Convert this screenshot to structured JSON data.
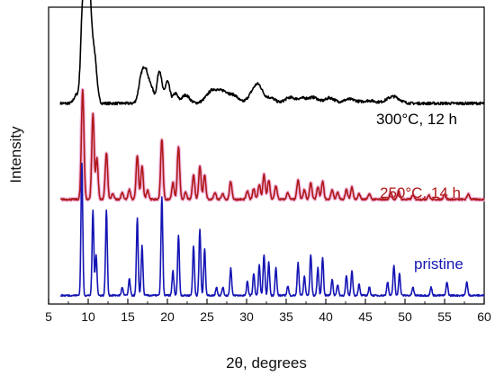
{
  "chart_data": {
    "type": "line",
    "title": "",
    "xlabel": "2θ, degrees",
    "ylabel": "Intensity",
    "xlim": [
      5,
      60
    ],
    "x_ticks": [
      5,
      10,
      15,
      20,
      25,
      30,
      35,
      40,
      45,
      50,
      55,
      60
    ],
    "x_ticks_labels": [
      "5",
      "10",
      "15",
      "20",
      "25",
      "30",
      "35",
      "40",
      "45",
      "50",
      "55",
      "60"
    ],
    "y_ticks_shown": false,
    "grid": false,
    "legend": "none",
    "series": [
      {
        "name": "300°C, 12 h",
        "color": "#000000",
        "style": "broad",
        "offset": 6.8,
        "baseline": 0.35,
        "peaks": [
          [
            9.3,
            3.2,
            0.25
          ],
          [
            10.0,
            5.0,
            0.35
          ],
          [
            10.8,
            1.6,
            0.3
          ],
          [
            8.5,
            0.3,
            0.3
          ],
          [
            16.7,
            0.85,
            0.35
          ],
          [
            17.3,
            1.05,
            0.35
          ],
          [
            18.0,
            0.5,
            0.3
          ],
          [
            19.0,
            1.2,
            0.3
          ],
          [
            20.0,
            0.8,
            0.3
          ],
          [
            21.0,
            0.35,
            0.3
          ],
          [
            22.3,
            0.3,
            0.5
          ],
          [
            25.8,
            0.5,
            0.8
          ],
          [
            27.3,
            0.35,
            0.6
          ],
          [
            28.5,
            0.25,
            0.5
          ],
          [
            31.0,
            0.45,
            0.7
          ],
          [
            31.6,
            0.35,
            0.5
          ],
          [
            33.0,
            0.2,
            0.6
          ],
          [
            35.4,
            0.2,
            0.6
          ],
          [
            37.0,
            0.18,
            0.7
          ],
          [
            38.5,
            0.2,
            0.6
          ],
          [
            40.5,
            0.2,
            0.6
          ],
          [
            43.0,
            0.15,
            0.8
          ],
          [
            45.5,
            0.1,
            0.8
          ],
          [
            48.5,
            0.25,
            0.8
          ]
        ]
      },
      {
        "name": "250°C, 14 h",
        "color": "#b01818",
        "style": "sharp",
        "offset": 3.4,
        "baseline": 0.25,
        "peaks": [
          [
            9.3,
            4.0,
            0.16
          ],
          [
            10.6,
            3.1,
            0.15
          ],
          [
            11.1,
            1.5,
            0.15
          ],
          [
            12.3,
            1.7,
            0.15
          ],
          [
            13.1,
            0.2,
            0.15
          ],
          [
            14.3,
            0.25,
            0.15
          ],
          [
            15.2,
            0.35,
            0.15
          ],
          [
            16.2,
            1.6,
            0.15
          ],
          [
            16.8,
            1.2,
            0.15
          ],
          [
            17.5,
            0.35,
            0.15
          ],
          [
            19.3,
            2.2,
            0.15
          ],
          [
            20.7,
            0.6,
            0.15
          ],
          [
            21.4,
            1.9,
            0.15
          ],
          [
            22.3,
            0.25,
            0.15
          ],
          [
            23.3,
            0.9,
            0.15
          ],
          [
            24.1,
            1.2,
            0.15
          ],
          [
            24.7,
            0.9,
            0.15
          ],
          [
            26.0,
            0.25,
            0.15
          ],
          [
            27.0,
            0.2,
            0.15
          ],
          [
            28.0,
            0.65,
            0.15
          ],
          [
            30.1,
            0.3,
            0.15
          ],
          [
            30.9,
            0.4,
            0.15
          ],
          [
            31.6,
            0.55,
            0.15
          ],
          [
            32.2,
            0.9,
            0.15
          ],
          [
            32.8,
            0.7,
            0.15
          ],
          [
            33.7,
            0.5,
            0.15
          ],
          [
            35.2,
            0.25,
            0.15
          ],
          [
            36.5,
            0.7,
            0.15
          ],
          [
            37.3,
            0.35,
            0.15
          ],
          [
            38.1,
            0.6,
            0.15
          ],
          [
            39.0,
            0.45,
            0.15
          ],
          [
            39.6,
            0.65,
            0.15
          ],
          [
            40.8,
            0.35,
            0.15
          ],
          [
            41.5,
            0.25,
            0.15
          ],
          [
            42.6,
            0.35,
            0.15
          ],
          [
            43.3,
            0.45,
            0.15
          ],
          [
            44.2,
            0.2,
            0.15
          ],
          [
            45.5,
            0.2,
            0.15
          ],
          [
            48.2,
            0.25,
            0.15
          ],
          [
            49.2,
            0.3,
            0.15
          ],
          [
            51.0,
            0.15,
            0.15
          ],
          [
            53.0,
            0.15,
            0.15
          ],
          [
            55.0,
            0.2,
            0.15
          ],
          [
            58.0,
            0.2,
            0.15
          ]
        ]
      },
      {
        "name": "pristine",
        "color": "#1515b5",
        "style": "sharp",
        "offset": 0.0,
        "baseline": 0.15,
        "peaks": [
          [
            9.2,
            4.8,
            0.11
          ],
          [
            10.6,
            3.1,
            0.11
          ],
          [
            11.0,
            1.5,
            0.11
          ],
          [
            12.3,
            3.1,
            0.11
          ],
          [
            14.3,
            0.3,
            0.11
          ],
          [
            15.2,
            0.6,
            0.11
          ],
          [
            16.2,
            2.8,
            0.11
          ],
          [
            16.8,
            1.8,
            0.11
          ],
          [
            19.3,
            3.6,
            0.11
          ],
          [
            20.7,
            0.9,
            0.11
          ],
          [
            21.4,
            2.2,
            0.11
          ],
          [
            23.3,
            1.8,
            0.11
          ],
          [
            24.1,
            2.4,
            0.11
          ],
          [
            24.7,
            1.7,
            0.11
          ],
          [
            26.2,
            0.3,
            0.11
          ],
          [
            27.0,
            0.3,
            0.11
          ],
          [
            28.0,
            1.0,
            0.11
          ],
          [
            30.1,
            0.5,
            0.11
          ],
          [
            30.9,
            0.8,
            0.11
          ],
          [
            31.6,
            1.1,
            0.11
          ],
          [
            32.2,
            1.5,
            0.11
          ],
          [
            32.8,
            1.2,
            0.11
          ],
          [
            33.7,
            1.0,
            0.11
          ],
          [
            35.2,
            0.35,
            0.11
          ],
          [
            36.5,
            1.2,
            0.11
          ],
          [
            37.3,
            0.7,
            0.11
          ],
          [
            38.1,
            1.5,
            0.11
          ],
          [
            39.0,
            1.0,
            0.11
          ],
          [
            39.6,
            1.4,
            0.11
          ],
          [
            40.8,
            0.6,
            0.11
          ],
          [
            41.5,
            0.4,
            0.11
          ],
          [
            42.6,
            0.7,
            0.11
          ],
          [
            43.3,
            0.9,
            0.11
          ],
          [
            44.2,
            0.4,
            0.11
          ],
          [
            45.5,
            0.3,
            0.11
          ],
          [
            47.8,
            0.5,
            0.11
          ],
          [
            48.6,
            1.1,
            0.11
          ],
          [
            49.3,
            0.8,
            0.11
          ],
          [
            51.0,
            0.3,
            0.11
          ],
          [
            53.3,
            0.3,
            0.11
          ],
          [
            55.3,
            0.5,
            0.11
          ],
          [
            57.8,
            0.5,
            0.11
          ]
        ]
      }
    ]
  }
}
